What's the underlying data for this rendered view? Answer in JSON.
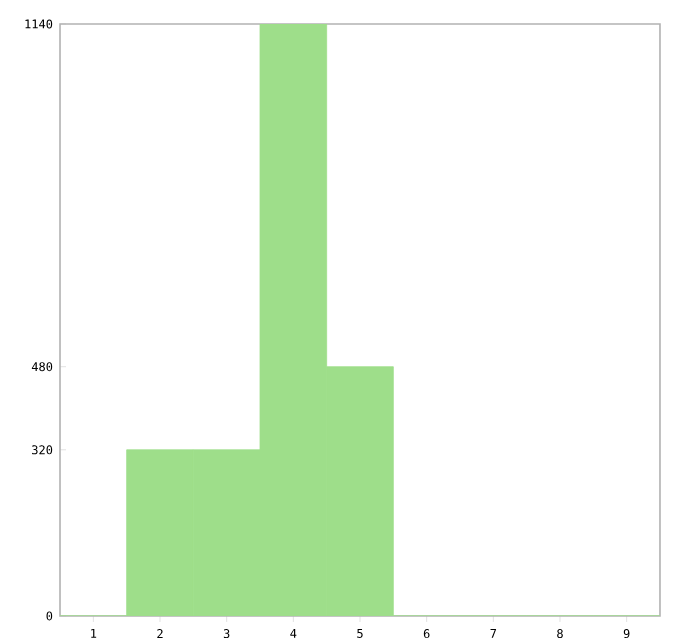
{
  "chart_data": {
    "type": "bar",
    "categories": [
      "1",
      "2",
      "3",
      "4",
      "5",
      "6",
      "7",
      "8",
      "9"
    ],
    "values": [
      0,
      320,
      320,
      1140,
      480,
      0,
      0,
      0,
      0
    ],
    "color": "#9ede8a",
    "ylim": [
      0,
      1140
    ],
    "yticks": [
      0,
      320,
      480,
      1140
    ],
    "grid": false
  }
}
